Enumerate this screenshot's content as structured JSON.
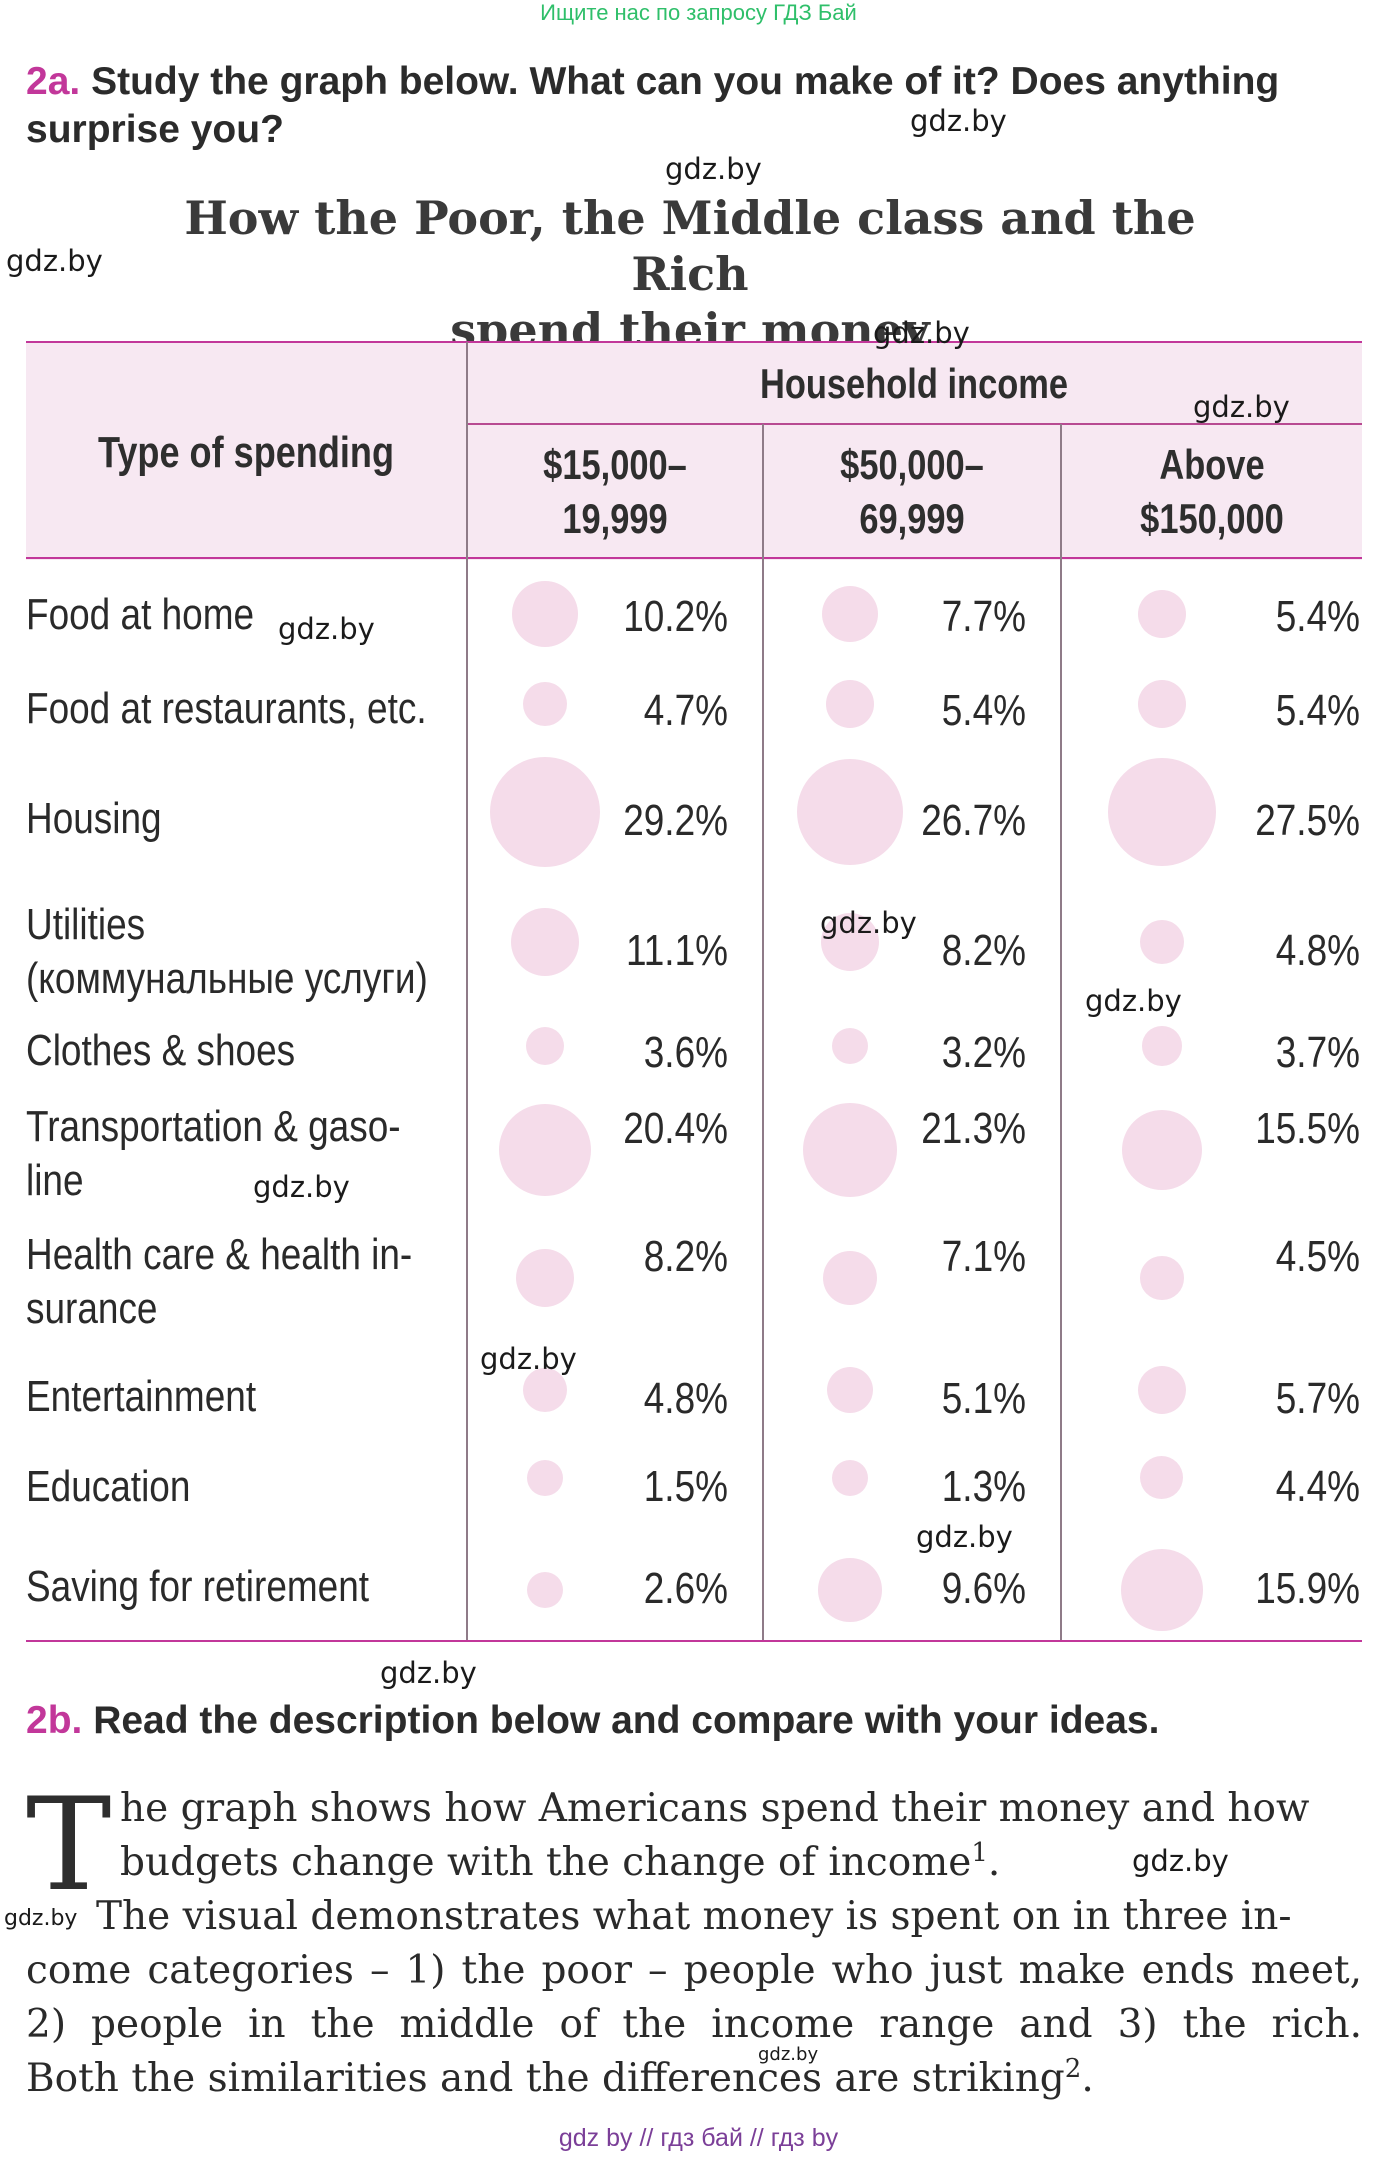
{
  "top_note": "Ищите нас по запросу ГДЗ Бай",
  "task_2a": {
    "number": "2a.",
    "text_line1": "Study the graph below. What can you make of it? Does anything",
    "text_line2": "surprise you?"
  },
  "graph": {
    "title_line1": "How the Poor, the Middle class and the Rich",
    "title_line2": "spend their money",
    "header": {
      "type_label": "Type of spending",
      "group_label": "Household income",
      "columns": [
        {
          "line1": "$15,000–",
          "line2": "19,999"
        },
        {
          "line1": "$50,000–",
          "line2": "69,999"
        },
        {
          "line1": "Above",
          "line2": "$150,000"
        }
      ]
    },
    "rows": [
      {
        "label_line1": "Food at home",
        "label_line2": "",
        "values": [
          "10.2%",
          "7.7%",
          "5.4%"
        ],
        "numeric": [
          10.2,
          7.7,
          5.4
        ]
      },
      {
        "label_line1": "Food at restaurants, etc.",
        "label_line2": "",
        "values": [
          "4.7%",
          "5.4%",
          "5.4%"
        ],
        "numeric": [
          4.7,
          5.4,
          5.4
        ]
      },
      {
        "label_line1": "Housing",
        "label_line2": "",
        "values": [
          "29.2%",
          "26.7%",
          "27.5%"
        ],
        "numeric": [
          29.2,
          26.7,
          27.5
        ]
      },
      {
        "label_line1": "Utilities",
        "label_line2": "(коммунальные услуги)",
        "values": [
          "11.1%",
          "8.2%",
          "4.8%"
        ],
        "numeric": [
          11.1,
          8.2,
          4.8
        ]
      },
      {
        "label_line1": "Clothes & shoes",
        "label_line2": "",
        "values": [
          "3.6%",
          "3.2%",
          "3.7%"
        ],
        "numeric": [
          3.6,
          3.2,
          3.7
        ]
      },
      {
        "label_line1": "Transportation & gaso-",
        "label_line2": "line",
        "values": [
          "20.4%",
          "21.3%",
          "15.5%"
        ],
        "numeric": [
          20.4,
          21.3,
          15.5
        ]
      },
      {
        "label_line1": "Health care & health in-",
        "label_line2": "surance",
        "values": [
          "8.2%",
          "7.1%",
          "4.5%"
        ],
        "numeric": [
          8.2,
          7.1,
          4.5
        ]
      },
      {
        "label_line1": "Entertainment",
        "label_line2": "",
        "values": [
          "4.8%",
          "5.1%",
          "5.7%"
        ],
        "numeric": [
          4.8,
          5.1,
          5.7
        ]
      },
      {
        "label_line1": "Education",
        "label_line2": "",
        "values": [
          "1.5%",
          "1.3%",
          "4.4%"
        ],
        "numeric": [
          1.5,
          1.3,
          4.4
        ]
      },
      {
        "label_line1": "Saving for retirement",
        "label_line2": "",
        "values": [
          "2.6%",
          "9.6%",
          "15.9%"
        ],
        "numeric": [
          2.6,
          9.6,
          15.9
        ]
      }
    ],
    "dot_color": "#f5dcea"
  },
  "task_2b": {
    "number": "2b.",
    "text": "Read the description below and compare with your ideas."
  },
  "passage": {
    "drop_cap": "T",
    "line1": "he graph shows how Americans spend their money and how",
    "line2": "budgets change with the change of income",
    "sup1": "1",
    "line2_end": ".",
    "line3": "The visual demonstrates what money is spent on in three in-",
    "line4": "come categories – 1) the poor – people who just make ends meet,",
    "line5": "2) people in the middle of the income range and 3) the rich.",
    "line6": "Both the similarities and the differences are striking",
    "sup2": "2",
    "line6_end": "."
  },
  "watermark": "gdz.by",
  "footer": "gdz by  //  гдз бай  //  гдз by",
  "colors": {
    "accent": "#c2379a",
    "header_bg": "#f7e8f2",
    "top_note": "#2fbf6a",
    "footer": "#7b3f98"
  }
}
